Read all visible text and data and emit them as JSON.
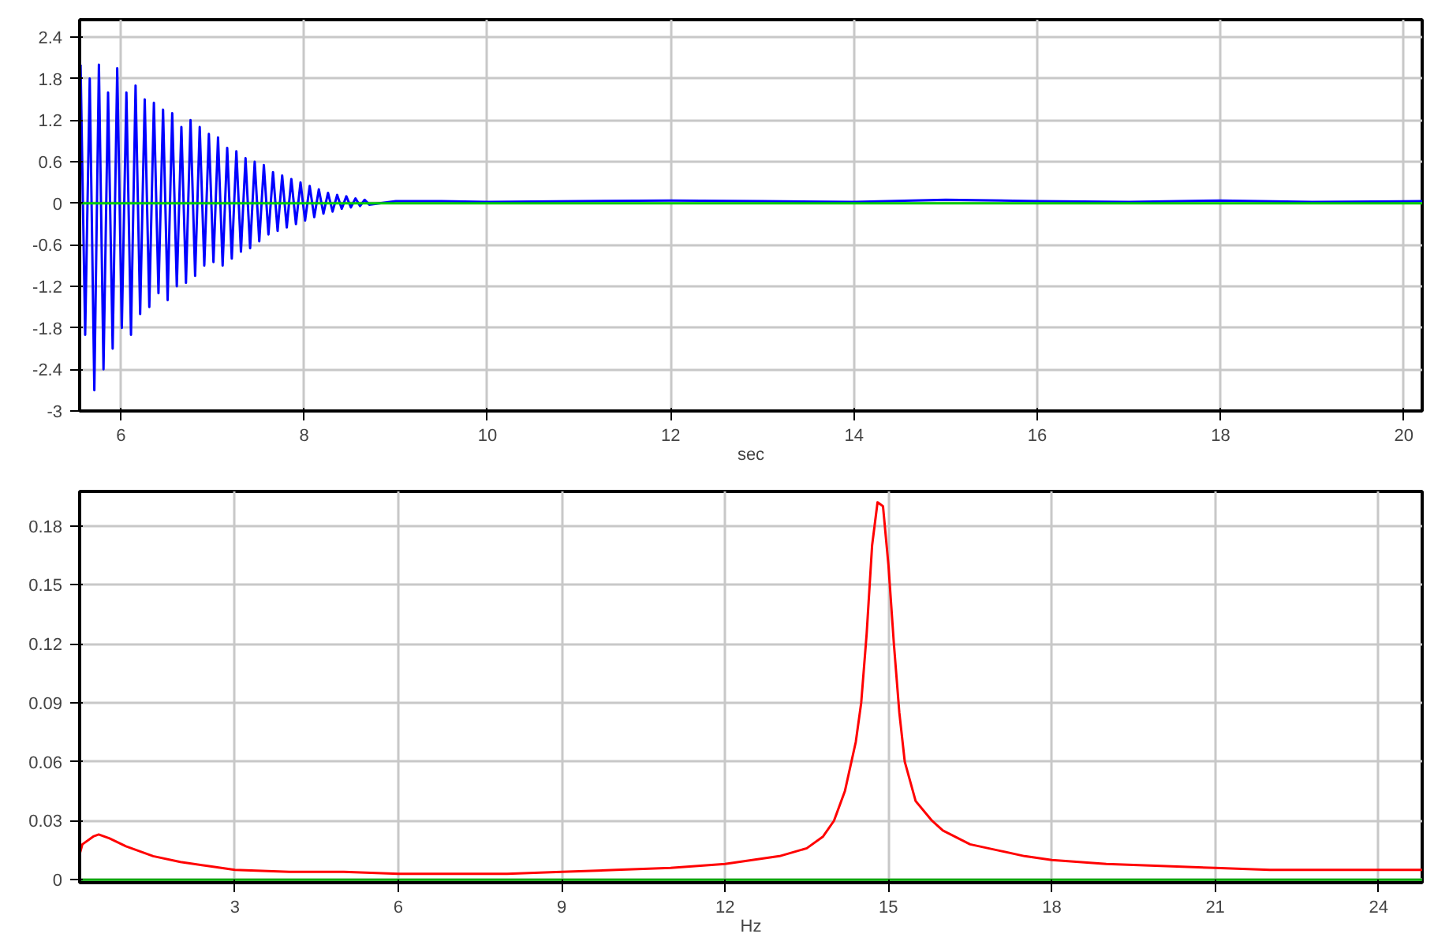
{
  "chart_data": [
    {
      "type": "line",
      "xlabel": "sec",
      "xlim": [
        5.55,
        20.2
      ],
      "ylim": [
        -3,
        2.65
      ],
      "xticks": [
        6,
        8,
        10,
        12,
        14,
        16,
        18,
        20
      ],
      "yticks": [
        -3,
        -2.4,
        -1.8,
        -1.2,
        -0.6,
        0,
        0.6,
        1.2,
        1.8,
        2.4
      ],
      "grid": true,
      "series": [
        {
          "color": "#0000ff",
          "x": [
            5.56,
            5.61,
            5.66,
            5.71,
            5.76,
            5.81,
            5.86,
            5.91,
            5.96,
            6.01,
            6.06,
            6.11,
            6.16,
            6.21,
            6.26,
            6.31,
            6.36,
            6.41,
            6.46,
            6.51,
            6.56,
            6.61,
            6.66,
            6.71,
            6.76,
            6.81,
            6.86,
            6.91,
            6.96,
            7.01,
            7.06,
            7.11,
            7.16,
            7.21,
            7.26,
            7.31,
            7.36,
            7.41,
            7.46,
            7.51,
            7.56,
            7.61,
            7.66,
            7.71,
            7.76,
            7.81,
            7.86,
            7.91,
            7.96,
            8.01,
            8.06,
            8.11,
            8.16,
            8.21,
            8.26,
            8.31,
            8.36,
            8.41,
            8.46,
            8.51,
            8.56,
            8.61,
            8.66,
            8.71,
            9.0,
            9.5,
            10,
            11,
            12,
            13,
            14,
            15,
            16,
            17,
            18,
            19,
            20.2
          ],
          "values": [
            2.0,
            -1.9,
            1.8,
            -2.7,
            2.0,
            -2.4,
            1.6,
            -2.1,
            1.95,
            -1.8,
            1.6,
            -1.9,
            1.7,
            -1.6,
            1.5,
            -1.5,
            1.45,
            -1.3,
            1.35,
            -1.4,
            1.3,
            -1.2,
            1.1,
            -1.15,
            1.2,
            -1.05,
            1.1,
            -0.9,
            1.0,
            -0.85,
            0.95,
            -0.9,
            0.8,
            -0.8,
            0.75,
            -0.7,
            0.65,
            -0.65,
            0.6,
            -0.55,
            0.55,
            -0.45,
            0.45,
            -0.4,
            0.4,
            -0.35,
            0.35,
            -0.3,
            0.3,
            -0.25,
            0.25,
            -0.2,
            0.2,
            -0.15,
            0.15,
            -0.12,
            0.12,
            -0.08,
            0.1,
            -0.06,
            0.07,
            -0.04,
            0.05,
            -0.02,
            0.03,
            0.03,
            0.02,
            0.03,
            0.04,
            0.03,
            0.02,
            0.05,
            0.03,
            0.02,
            0.04,
            0.02,
            0.03
          ]
        },
        {
          "color": "#00cc00",
          "x": [
            5.55,
            20.2
          ],
          "values": [
            0,
            0
          ]
        }
      ]
    },
    {
      "type": "line",
      "xlabel": "Hz",
      "xlim": [
        0.15,
        24.8
      ],
      "ylim": [
        -0.0015,
        0.1975
      ],
      "xticks": [
        3,
        6,
        9,
        12,
        15,
        18,
        21,
        24
      ],
      "yticks": [
        0,
        0.03,
        0.06,
        0.09,
        0.12,
        0.15,
        0.18
      ],
      "grid": true,
      "series": [
        {
          "color": "#ff0000",
          "x": [
            0.15,
            0.2,
            0.4,
            0.5,
            0.7,
            1.0,
            1.5,
            2,
            2.5,
            3,
            4,
            5,
            6,
            7,
            8,
            9,
            10,
            11,
            12,
            12.5,
            13,
            13.5,
            13.8,
            14.0,
            14.2,
            14.4,
            14.5,
            14.6,
            14.7,
            14.8,
            14.9,
            15.0,
            15.1,
            15.2,
            15.3,
            15.5,
            15.8,
            16,
            16.5,
            17,
            17.5,
            18,
            19,
            20,
            21,
            22,
            23,
            24,
            24.8
          ],
          "values": [
            0.013,
            0.018,
            0.022,
            0.023,
            0.021,
            0.017,
            0.012,
            0.009,
            0.007,
            0.005,
            0.004,
            0.004,
            0.003,
            0.003,
            0.003,
            0.004,
            0.005,
            0.006,
            0.008,
            0.01,
            0.012,
            0.016,
            0.022,
            0.03,
            0.045,
            0.07,
            0.09,
            0.125,
            0.17,
            0.192,
            0.19,
            0.16,
            0.12,
            0.085,
            0.06,
            0.04,
            0.03,
            0.025,
            0.018,
            0.015,
            0.012,
            0.01,
            0.008,
            0.007,
            0.006,
            0.005,
            0.005,
            0.005,
            0.005
          ]
        },
        {
          "color": "#00aa00",
          "x": [
            0.15,
            24.8
          ],
          "values": [
            0,
            0
          ]
        }
      ]
    }
  ]
}
